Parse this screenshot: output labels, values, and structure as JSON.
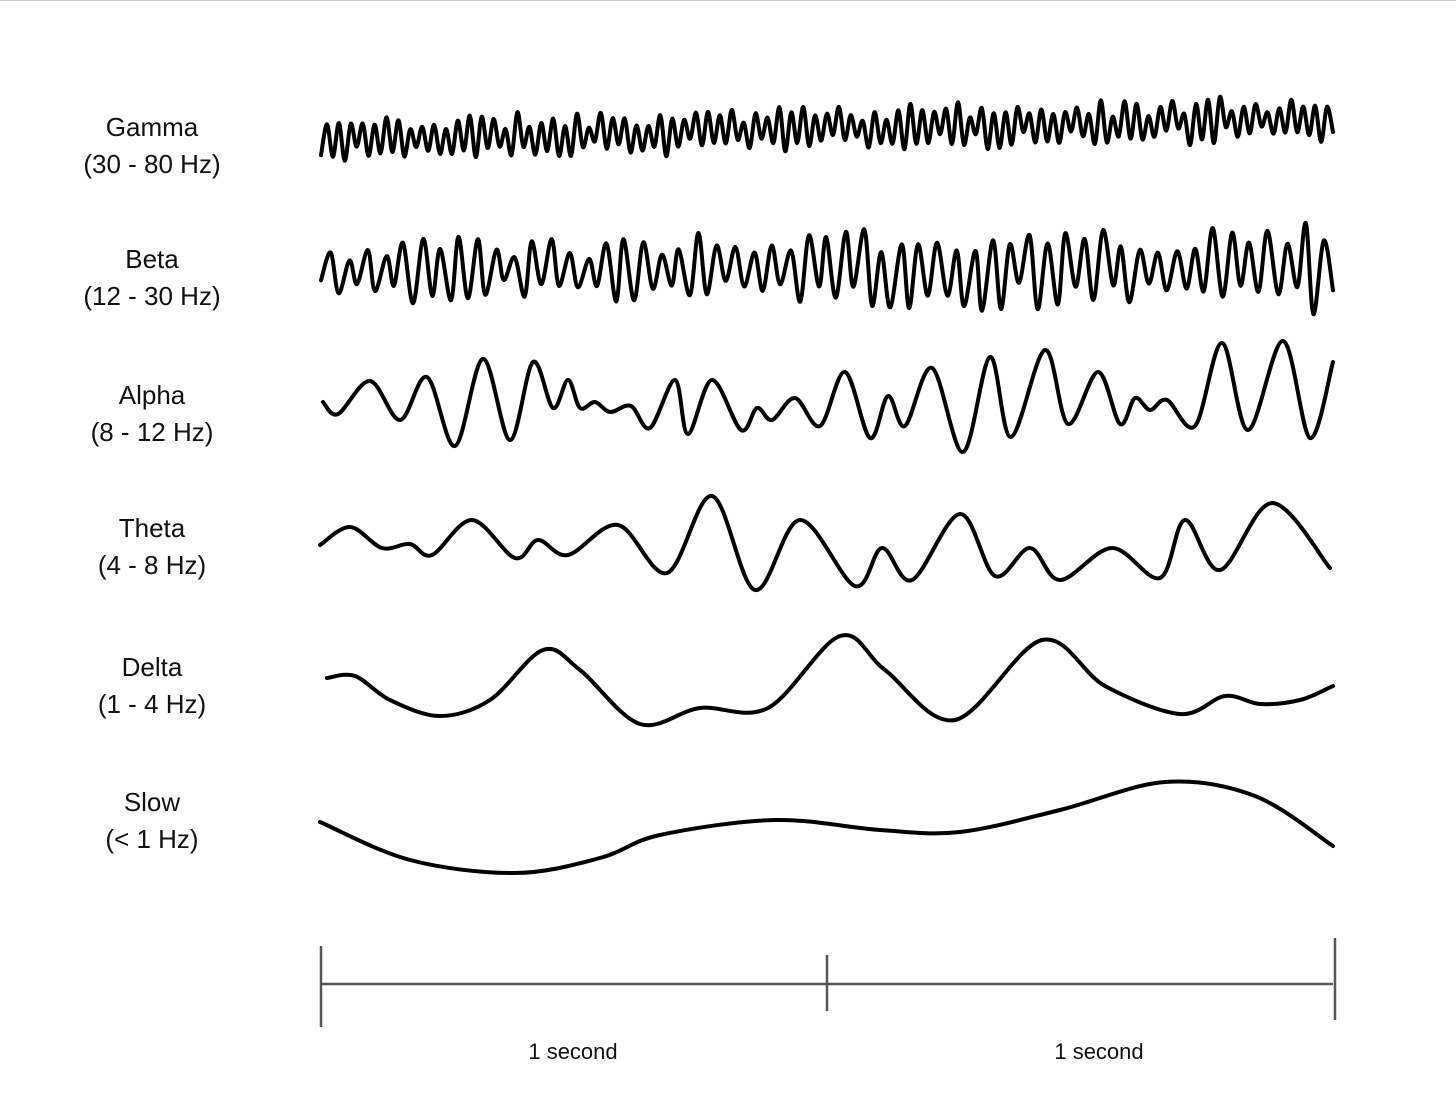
{
  "bands": [
    {
      "name": "Gamma",
      "range": "(30 - 80 Hz)"
    },
    {
      "name": "Beta",
      "range": "(12 - 30 Hz)"
    },
    {
      "name": "Alpha",
      "range": "(8 - 12 Hz)"
    },
    {
      "name": "Theta",
      "range": "(4 - 8 Hz)"
    },
    {
      "name": "Delta",
      "range": "(1 - 4 Hz)"
    },
    {
      "name": "Slow",
      "range": "(< 1 Hz)"
    }
  ],
  "scale": {
    "segments": [
      {
        "label": "1 second"
      },
      {
        "label": "1 second"
      }
    ]
  },
  "colors": {
    "wave": "#000000",
    "scale": "#555555",
    "text": "#111111"
  }
}
